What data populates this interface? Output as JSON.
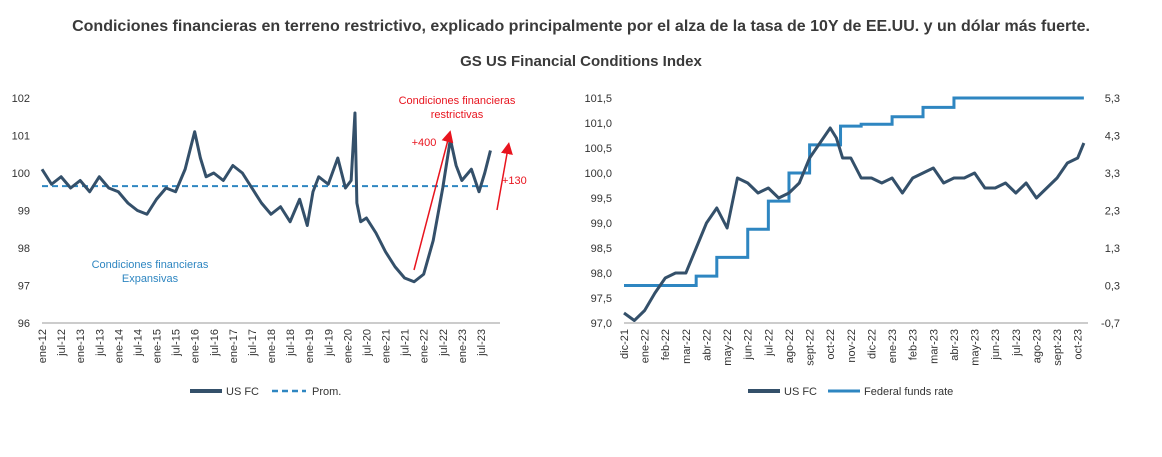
{
  "headline": "Condiciones financieras en terreno restrictivo, explicado principalmente por el alza de la tasa de 10Y de EE.UU. y un dólar más fuerte.",
  "subtitle": "GS US Financial Conditions Index",
  "colors": {
    "fc": "#34506a",
    "avg": "#2e86c1",
    "ffr": "#2e86c1",
    "annot": "#e8141e"
  },
  "chart_data": [
    {
      "type": "line",
      "title": "",
      "ylim": [
        96,
        102
      ],
      "yticks": [
        "96",
        "97",
        "98",
        "99",
        "100",
        "101",
        "102"
      ],
      "xticks": [
        "ene-12",
        "jul-12",
        "ene-13",
        "jul-13",
        "ene-14",
        "jul-14",
        "ene-15",
        "jul-15",
        "ene-16",
        "jul-16",
        "ene-17",
        "jul-17",
        "ene-18",
        "jul-18",
        "ene-19",
        "jul-19",
        "ene-20",
        "jul-20",
        "ene-21",
        "jul-21",
        "ene-22",
        "jul-22",
        "ene-23",
        "jul-23"
      ],
      "series": [
        {
          "name": "US FC",
          "x": [
            2012.0,
            2012.25,
            2012.5,
            2012.75,
            2013.0,
            2013.25,
            2013.5,
            2013.75,
            2014.0,
            2014.25,
            2014.5,
            2014.75,
            2015.0,
            2015.25,
            2015.5,
            2015.75,
            2016.0,
            2016.15,
            2016.3,
            2016.5,
            2016.75,
            2017.0,
            2017.25,
            2017.5,
            2017.75,
            2018.0,
            2018.25,
            2018.5,
            2018.75,
            2018.95,
            2019.1,
            2019.25,
            2019.5,
            2019.75,
            2019.95,
            2020.1,
            2020.2,
            2020.25,
            2020.35,
            2020.5,
            2020.75,
            2021.0,
            2021.25,
            2021.5,
            2021.75,
            2022.0,
            2022.25,
            2022.5,
            2022.7,
            2022.85,
            2023.0,
            2023.25,
            2023.45,
            2023.6,
            2023.75
          ],
          "values": [
            100.1,
            99.7,
            99.9,
            99.6,
            99.8,
            99.5,
            99.9,
            99.6,
            99.5,
            99.2,
            99.0,
            98.9,
            99.3,
            99.6,
            99.5,
            100.1,
            101.1,
            100.4,
            99.9,
            100.0,
            99.8,
            100.2,
            100.0,
            99.6,
            99.2,
            98.9,
            99.1,
            98.7,
            99.3,
            98.6,
            99.5,
            99.9,
            99.7,
            100.4,
            99.6,
            99.8,
            101.6,
            99.2,
            98.7,
            98.8,
            98.4,
            97.9,
            97.5,
            97.2,
            97.1,
            97.3,
            98.2,
            99.6,
            100.9,
            100.2,
            99.8,
            100.1,
            99.5,
            100.0,
            100.6
          ]
        },
        {
          "name": "Prom.",
          "x": [
            2012.0,
            2023.75
          ],
          "values": [
            99.65,
            99.65
          ]
        }
      ],
      "legend": [
        "US FC",
        "Prom."
      ],
      "legend_position": "bottom",
      "annotations": {
        "restrictive": [
          "Condiciones financieras",
          "restrictivas"
        ],
        "expansive": [
          "Condiciones financieras",
          "Expansivas"
        ],
        "plus400": "+400",
        "plus130": "+130"
      }
    },
    {
      "type": "line",
      "title": "",
      "ylim": [
        97.0,
        101.5
      ],
      "yticks": [
        "97,0",
        "97,5",
        "98,0",
        "98,5",
        "99,0",
        "99,5",
        "100,0",
        "100,5",
        "101,0",
        "101,5"
      ],
      "y2lim": [
        -0.7,
        5.3
      ],
      "y2ticks": [
        "-0,7",
        "0,3",
        "1,3",
        "2,3",
        "3,3",
        "4,3",
        "5,3"
      ],
      "xticks": [
        "dic-21",
        "ene-22",
        "feb-22",
        "mar-22",
        "abr-22",
        "may-22",
        "jun-22",
        "jul-22",
        "ago-22",
        "sept-22",
        "oct-22",
        "nov-22",
        "dic-22",
        "ene-23",
        "feb-23",
        "mar-23",
        "abr-23",
        "may-23",
        "jun-23",
        "jul-23",
        "ago-23",
        "sept-23",
        "oct-23"
      ],
      "series": [
        {
          "name": "US FC",
          "axis": "left",
          "x": [
            0,
            0.5,
            1,
            1.5,
            2,
            2.5,
            3,
            3.5,
            4,
            4.5,
            5,
            5.5,
            6,
            6.5,
            7,
            7.5,
            8,
            8.5,
            9,
            9.5,
            10,
            10.3,
            10.6,
            11,
            11.5,
            12,
            12.5,
            13,
            13.5,
            14,
            14.5,
            15,
            15.5,
            16,
            16.5,
            17,
            17.5,
            18,
            18.5,
            19,
            19.5,
            20,
            20.5,
            21,
            21.5,
            22,
            22.3
          ],
          "values": [
            97.2,
            97.05,
            97.25,
            97.6,
            97.9,
            98.0,
            98.0,
            98.5,
            99.0,
            99.3,
            98.9,
            99.9,
            99.8,
            99.6,
            99.7,
            99.5,
            99.6,
            99.8,
            100.3,
            100.6,
            100.9,
            100.7,
            100.3,
            100.3,
            99.9,
            99.9,
            99.8,
            99.9,
            99.6,
            99.9,
            100.0,
            100.1,
            99.8,
            99.9,
            99.9,
            100.0,
            99.7,
            99.7,
            99.8,
            99.6,
            99.8,
            99.5,
            99.7,
            99.9,
            100.2,
            100.3,
            100.6
          ]
        },
        {
          "name": "Federal funds rate",
          "axis": "right",
          "x": [
            0,
            3.5,
            3.5,
            4.5,
            4.5,
            6,
            6,
            7,
            7,
            8,
            8,
            9,
            9,
            10.5,
            10.5,
            11.5,
            11.5,
            13,
            13,
            14.5,
            14.5,
            16,
            16,
            17,
            17,
            22.3
          ],
          "values": [
            0.3,
            0.3,
            0.55,
            0.55,
            1.05,
            1.05,
            1.8,
            1.8,
            2.55,
            2.55,
            3.3,
            3.3,
            4.05,
            4.05,
            4.55,
            4.55,
            4.6,
            4.6,
            4.8,
            4.8,
            5.05,
            5.05,
            5.3,
            5.3,
            5.3,
            5.3
          ]
        }
      ],
      "legend": [
        "US FC",
        "Federal funds rate"
      ],
      "legend_position": "bottom"
    }
  ]
}
